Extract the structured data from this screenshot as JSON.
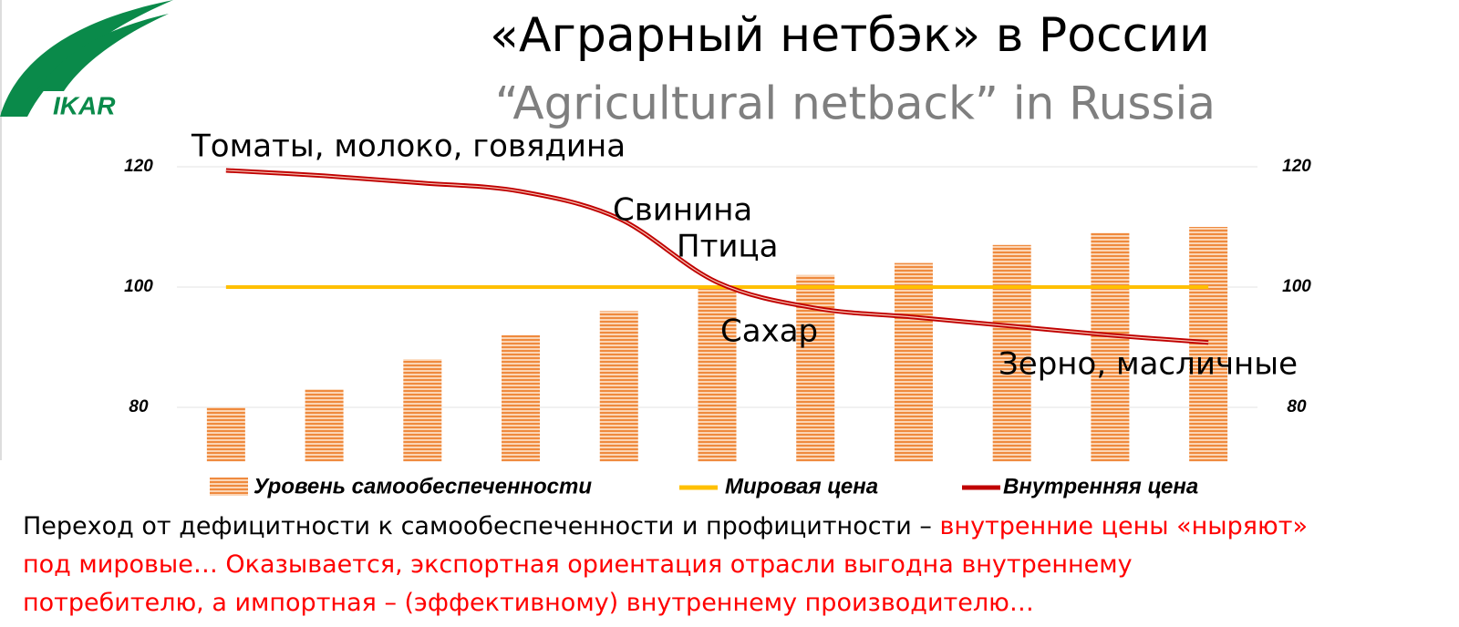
{
  "logo": "IKAR",
  "chart_data": {
    "type": "bar",
    "title": "«Аграрный нетбэк» в России",
    "subtitle": "“Agricultural netback” in Russia",
    "categories": [
      null,
      null,
      null,
      null,
      null,
      null,
      null,
      null,
      null,
      null,
      null
    ],
    "series": [
      {
        "name": "Уровень самообеспеченности",
        "type": "bar",
        "color": "#ed7d31",
        "values": [
          80,
          83,
          88,
          92,
          96,
          100,
          102,
          104,
          107,
          109,
          110
        ]
      },
      {
        "name": "Мировая цена",
        "type": "line",
        "color": "#ffc000",
        "values": [
          100,
          100,
          100,
          100,
          100,
          100,
          100,
          100,
          100,
          100,
          100
        ]
      },
      {
        "name": "Внутренняя цена",
        "type": "line",
        "color": "#c00000",
        "values": [
          119.4,
          118.5,
          117.3,
          115.9,
          111.4,
          100.8,
          96.5,
          95,
          93.5,
          92,
          90.8
        ]
      }
    ],
    "ylim": [
      71,
      120
    ],
    "yticks": [
      80,
      100,
      120
    ],
    "y2lim": [
      71,
      120
    ],
    "y2ticks": [
      80,
      100,
      120
    ],
    "grid": true,
    "legend": "bottom",
    "annotations": [
      "Томаты, молоко, говядина",
      "Свинина",
      "Птица",
      "Сахар",
      "Зерно, масличные"
    ]
  },
  "note": {
    "black": "Переход от дефицитности к самообеспеченности и профицитности – ",
    "red": [
      "внутренние цены «ныряют»",
      "под мировые… Оказывается, экспортная ориентация отрасли выгодна  внутреннему",
      "потребителю, а импортная – (эффективному) внутреннему производителю…"
    ]
  }
}
